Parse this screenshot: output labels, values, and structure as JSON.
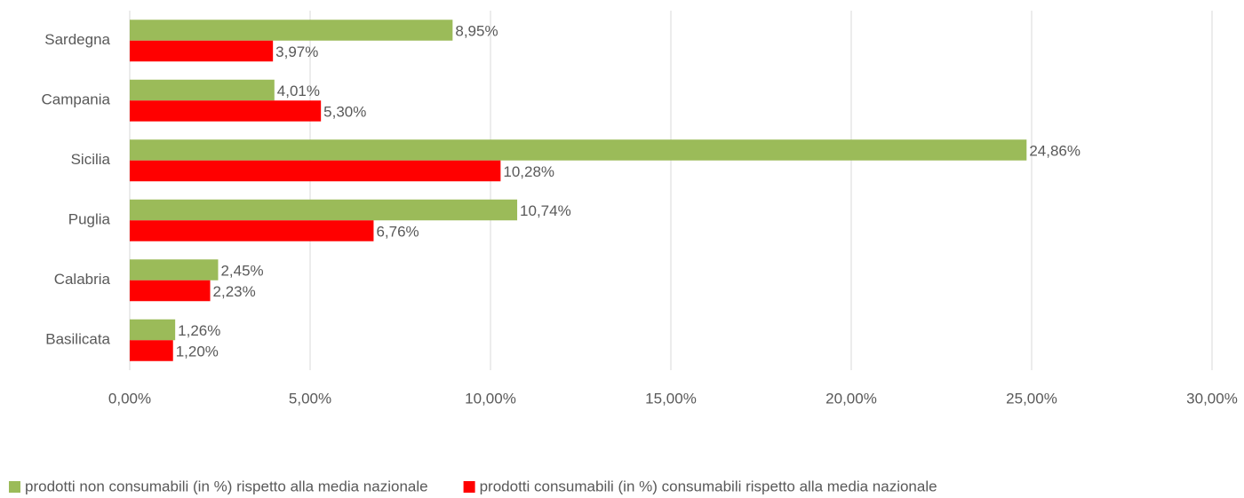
{
  "chart_data": {
    "type": "hbar",
    "categories": [
      "Sardegna",
      "Campania",
      "Sicilia",
      "Puglia",
      "Calabria",
      "Basilicata"
    ],
    "series": [
      {
        "name": "prodotti non consumabili (in %) rispetto alla media nazionale",
        "color": "#9bbb59",
        "values": [
          8.95,
          4.01,
          24.86,
          10.74,
          2.45,
          1.26
        ],
        "value_labels": [
          "8,95%",
          "4,01%",
          "24,86%",
          "10,74%",
          "2,45%",
          "1,26%"
        ]
      },
      {
        "name": "prodotti consumabili (in %) consumabili rispetto alla media nazionale",
        "color": "#ff0000",
        "values": [
          3.97,
          5.3,
          10.28,
          6.76,
          2.23,
          1.2
        ],
        "value_labels": [
          "3,97%",
          "5,30%",
          "10,28%",
          "6,76%",
          "2,23%",
          "1,20%"
        ]
      }
    ],
    "xlim": [
      0,
      30
    ],
    "xticks": [
      {
        "value": 0,
        "label": "0,00%"
      },
      {
        "value": 5,
        "label": "5,00%"
      },
      {
        "value": 10,
        "label": "10,00%"
      },
      {
        "value": 15,
        "label": "15,00%"
      },
      {
        "value": 20,
        "label": "20,00%"
      },
      {
        "value": 25,
        "label": "25,00%"
      },
      {
        "value": 30,
        "label": "30,00%"
      }
    ],
    "grid": true,
    "legend": "bottom"
  }
}
